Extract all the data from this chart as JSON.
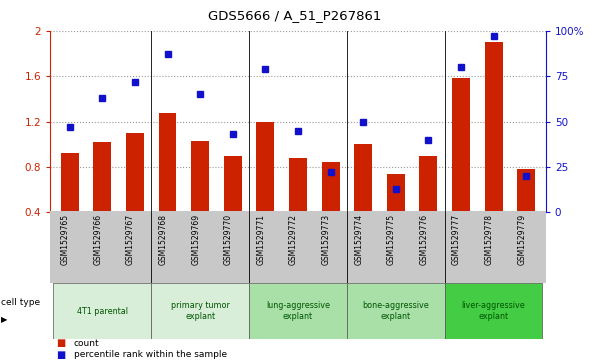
{
  "title": "GDS5666 / A_51_P267861",
  "samples": [
    "GSM1529765",
    "GSM1529766",
    "GSM1529767",
    "GSM1529768",
    "GSM1529769",
    "GSM1529770",
    "GSM1529771",
    "GSM1529772",
    "GSM1529773",
    "GSM1529774",
    "GSM1529775",
    "GSM1529776",
    "GSM1529777",
    "GSM1529778",
    "GSM1529779"
  ],
  "counts": [
    0.92,
    1.02,
    1.1,
    1.28,
    1.03,
    0.9,
    1.2,
    0.88,
    0.84,
    1.0,
    0.74,
    0.9,
    1.58,
    1.9,
    0.78
  ],
  "percentiles": [
    47,
    63,
    72,
    87,
    65,
    43,
    79,
    45,
    22,
    50,
    13,
    40,
    80,
    97,
    20
  ],
  "bar_color": "#cc2200",
  "marker_color": "#1111cc",
  "ylim_left": [
    0.4,
    2.0
  ],
  "ylim_right": [
    0,
    100
  ],
  "yticks_left": [
    0.4,
    0.8,
    1.2,
    1.6,
    2.0
  ],
  "ytick_labels_left": [
    "0.4",
    "0.8",
    "1.2",
    "1.6",
    "2"
  ],
  "yticks_right": [
    0,
    25,
    50,
    75,
    100
  ],
  "ytick_labels_right": [
    "0",
    "25",
    "50",
    "75",
    "100%"
  ],
  "cell_groups": [
    {
      "label": "4T1 parental",
      "start": 0,
      "end": 3,
      "color": "#d8eed8"
    },
    {
      "label": "primary tumor\nexplant",
      "start": 3,
      "end": 6,
      "color": "#d8eed8"
    },
    {
      "label": "lung-aggressive\nexplant",
      "start": 6,
      "end": 9,
      "color": "#a8e0a8"
    },
    {
      "label": "bone-aggressive\nexplant",
      "start": 9,
      "end": 12,
      "color": "#a8e0a8"
    },
    {
      "label": "liver-aggressive\nexplant",
      "start": 12,
      "end": 15,
      "color": "#44cc44"
    }
  ],
  "bar_width": 0.55,
  "grid_color": "#999999",
  "tick_area_color": "#c8c8c8",
  "cell_type_label": "cell type"
}
